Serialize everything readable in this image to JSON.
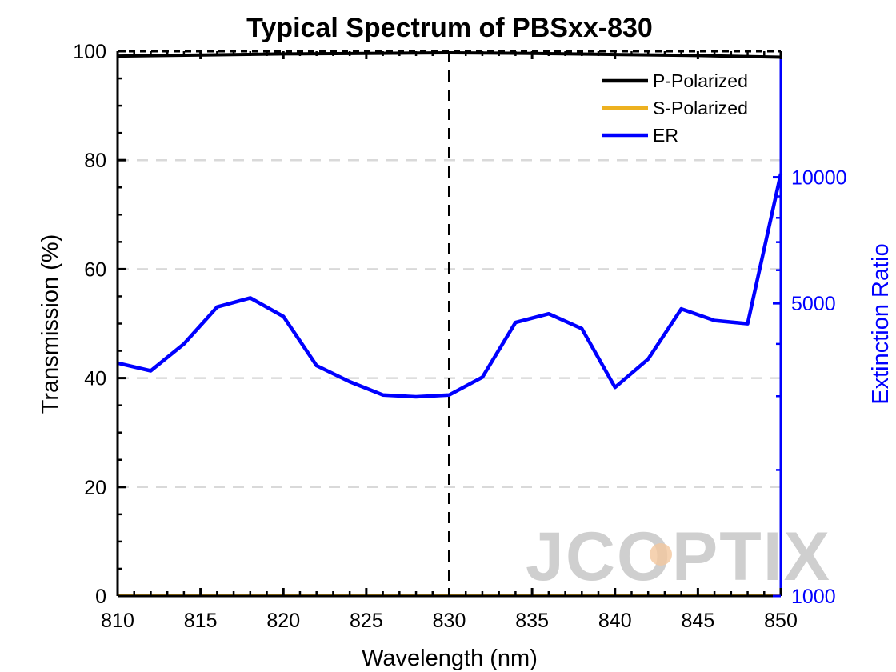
{
  "chart_data": {
    "type": "line",
    "title": "Typical Spectrum of PBSxx-830",
    "xlabel": "Wavelength (nm)",
    "ylabel_left": "Transmission (%)",
    "ylabel_right": "Extinction Ratio",
    "xlim": [
      810,
      850
    ],
    "ylim_left": [
      0,
      100
    ],
    "ylim_right": [
      1000,
      20000
    ],
    "right_axis_scale": "log",
    "x_ticks": [
      "810",
      "815",
      "820",
      "825",
      "830",
      "835",
      "840",
      "845",
      "850"
    ],
    "y_left_ticks": [
      "0",
      "20",
      "40",
      "60",
      "80",
      "100"
    ],
    "y_right_ticks": [
      "1000",
      "5000",
      "10000"
    ],
    "grid": "horizontal dashed",
    "legend_position": "top-right",
    "reference_line": {
      "x": 830,
      "style": "dashed",
      "color": "#000000"
    },
    "series": [
      {
        "name": "P-Polarized",
        "axis": "left",
        "color": "#000000",
        "x": [
          810,
          815,
          820,
          825,
          830,
          835,
          840,
          845,
          850
        ],
        "y": [
          99.1,
          99.3,
          99.5,
          99.6,
          99.7,
          99.6,
          99.4,
          99.2,
          98.9
        ]
      },
      {
        "name": "S-Polarized",
        "axis": "left",
        "color": "#edb120",
        "x": [
          810,
          815,
          820,
          825,
          830,
          835,
          840,
          845,
          850
        ],
        "y": [
          0.1,
          0.1,
          0.1,
          0.1,
          0.1,
          0.1,
          0.1,
          0.1,
          0.1
        ]
      },
      {
        "name": "ER",
        "axis": "right",
        "color": "#0000ff",
        "x": [
          810,
          812,
          814,
          816,
          818,
          820,
          822,
          824,
          826,
          828,
          830,
          832,
          834,
          836,
          838,
          840,
          842,
          844,
          846,
          848,
          850
        ],
        "y": [
          3600,
          3450,
          4000,
          4900,
          5150,
          4650,
          3550,
          3250,
          3020,
          2990,
          3020,
          3330,
          4500,
          4720,
          4350,
          3150,
          3680,
          4850,
          4550,
          4470,
          10200
        ]
      }
    ]
  },
  "watermark": "JCOPTIX",
  "colors": {
    "axis_right": "#0000ff",
    "grid": "#d9d9d9",
    "watermark": "#cfcfcf",
    "watermark_accent": "#f3c79d"
  }
}
